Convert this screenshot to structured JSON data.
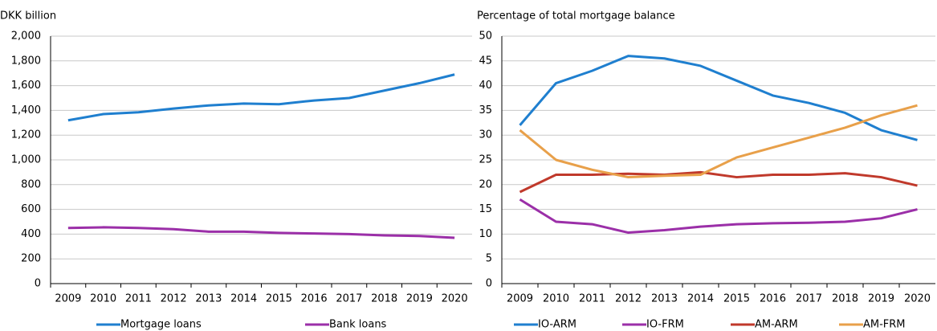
{
  "chart_data": [
    {
      "type": "line",
      "y_label": "DKK billion",
      "categories": [
        "2009",
        "2010",
        "2011",
        "2012",
        "2013",
        "2014",
        "2015",
        "2016",
        "2017",
        "2018",
        "2019",
        "2020"
      ],
      "series": [
        {
          "name": "Mortgage loans",
          "color": "#1f7fcf",
          "values": [
            1320,
            1370,
            1385,
            1415,
            1440,
            1455,
            1450,
            1480,
            1500,
            1560,
            1620,
            1690
          ]
        },
        {
          "name": "Bank loans",
          "color": "#9b2fa8",
          "values": [
            450,
            455,
            450,
            440,
            420,
            420,
            410,
            405,
            400,
            390,
            385,
            370
          ]
        }
      ],
      "ylim": [
        0,
        2000
      ],
      "yticks": [
        0,
        200,
        400,
        600,
        800,
        {
          "value": 1000,
          "label": "1,000"
        },
        {
          "value": 1200,
          "label": "1,200"
        },
        {
          "value": 1400,
          "label": "1,400"
        },
        {
          "value": 1600,
          "label": "1,600"
        },
        {
          "value": 1800,
          "label": "1,800"
        },
        {
          "value": 2000,
          "label": "2,000"
        }
      ],
      "grid": true
    },
    {
      "type": "line",
      "y_label": "Percentage of total mortgage balance",
      "categories": [
        "2009",
        "2010",
        "2011",
        "2012",
        "2013",
        "2014",
        "2015",
        "2016",
        "2017",
        "2018",
        "2019",
        "2020"
      ],
      "series": [
        {
          "name": "IO-ARM",
          "color": "#1f7fcf",
          "values": [
            32,
            40.5,
            43,
            46,
            45.5,
            44,
            41,
            38,
            36.5,
            34.5,
            31,
            29
          ]
        },
        {
          "name": "IO-FRM",
          "color": "#9b2fa8",
          "values": [
            17,
            12.5,
            12,
            10.3,
            10.8,
            11.5,
            12,
            12.2,
            12.3,
            12.5,
            13.2,
            15
          ]
        },
        {
          "name": "AM-ARM",
          "color": "#c0392b",
          "values": [
            18.5,
            22,
            22,
            22.2,
            22,
            22.5,
            21.5,
            22,
            22,
            22.3,
            21.5,
            19.8
          ]
        },
        {
          "name": "AM-FRM",
          "color": "#e8a04a",
          "values": [
            31,
            25,
            23,
            21.5,
            21.8,
            22,
            25.5,
            27.5,
            29.5,
            31.5,
            34,
            36
          ]
        }
      ],
      "ylim": [
        0,
        50
      ],
      "yticks": [
        0,
        5,
        10,
        15,
        20,
        25,
        30,
        35,
        40,
        45,
        50
      ],
      "grid": true
    }
  ]
}
